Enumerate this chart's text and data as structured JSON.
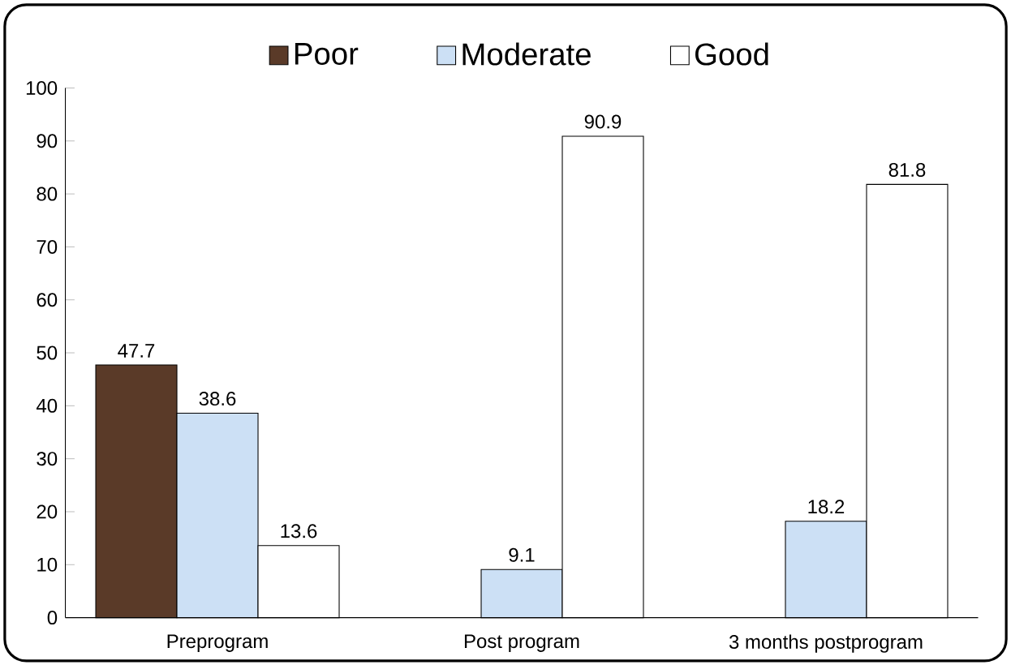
{
  "chart_data": {
    "type": "bar",
    "categories": [
      "Preprogram",
      "Post program",
      "3 months postprogram"
    ],
    "series": [
      {
        "name": "Poor",
        "color": "#5a3a28",
        "values": [
          47.7,
          null,
          null
        ]
      },
      {
        "name": "Moderate",
        "color": "#cce0f5",
        "values": [
          38.6,
          9.1,
          18.2
        ]
      },
      {
        "name": "Good",
        "color": "#ffffff",
        "values": [
          13.6,
          90.9,
          81.8
        ]
      }
    ],
    "ylim": [
      0,
      100
    ],
    "yticks": [
      0,
      10,
      20,
      30,
      40,
      50,
      60,
      70,
      80,
      90,
      100
    ],
    "data_labels": true,
    "legend": "top",
    "grid": false
  }
}
